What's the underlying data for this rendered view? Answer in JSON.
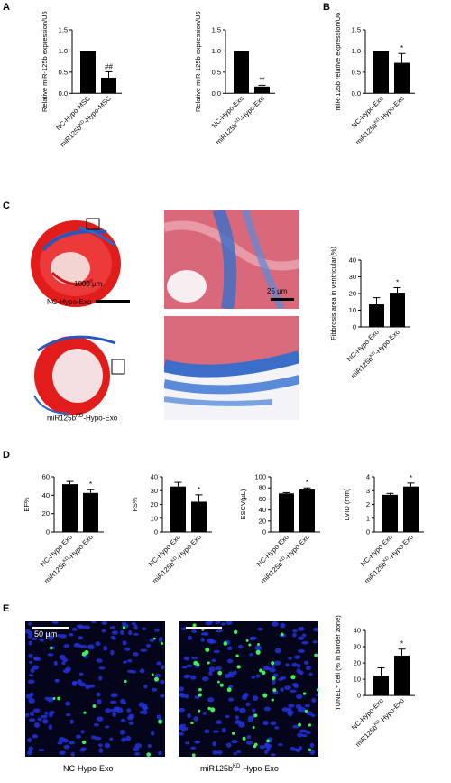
{
  "panels": {
    "A": "A",
    "B": "B",
    "C": "C",
    "D": "D",
    "E": "E"
  },
  "scale_bars": {
    "heart": "1000 µm",
    "zoom": "25 µm",
    "tunel": "50 µm"
  },
  "image_captions": {
    "c_top": "NC-Hypo-Exo",
    "c_bottom_prefix": "miR125b",
    "c_bottom_sup": "KD",
    "c_bottom_suffix": "-Hypo-Exo",
    "e_left": "NC-Hypo-Exo",
    "e_right_prefix": "miR125b",
    "e_right_sup": "KD",
    "e_right_suffix": "-Hypo-Exo"
  },
  "chart_data": [
    {
      "id": "A1",
      "type": "bar",
      "ylabel": "Relative miR-125b expression/U6",
      "ylim": [
        0,
        1.5
      ],
      "ticks": [
        0.0,
        0.5,
        1.0,
        1.5
      ],
      "categories": [
        {
          "p": "NC-Hypo-MSC",
          "s": "",
          "e": ""
        },
        {
          "p": "miR125b",
          "s": "KD",
          "e": "-Hypo-MSC"
        }
      ],
      "values": [
        1.0,
        0.37
      ],
      "errors": [
        0,
        0.14
      ],
      "signif": [
        "",
        "##"
      ]
    },
    {
      "id": "A2",
      "type": "bar",
      "ylabel": "Relative miR-125b expression/U6",
      "ylim": [
        0,
        1.5
      ],
      "ticks": [
        0.0,
        0.5,
        1.0,
        1.5
      ],
      "categories": [
        {
          "p": "NC-Hypo-Exo",
          "s": "",
          "e": ""
        },
        {
          "p": "miR125b",
          "s": "KD",
          "e": "-Hypo-Exo"
        }
      ],
      "values": [
        1.0,
        0.16
      ],
      "errors": [
        0,
        0.03
      ],
      "signif": [
        "",
        "**"
      ]
    },
    {
      "id": "B",
      "type": "bar",
      "ylabel": "miR-125b relative expression/U6",
      "ylim": [
        0,
        1.5
      ],
      "ticks": [
        0.0,
        0.5,
        1.0,
        1.5
      ],
      "categories": [
        {
          "p": "NC-Hypo-Exo",
          "s": "",
          "e": ""
        },
        {
          "p": "miR125b",
          "s": "KD",
          "e": "-Hypo-Exo"
        }
      ],
      "values": [
        1.0,
        0.72
      ],
      "errors": [
        0,
        0.22
      ],
      "signif": [
        "",
        "*"
      ]
    },
    {
      "id": "C",
      "type": "bar",
      "ylabel": "Fibbrosis area in ventricular(%)",
      "ylim": [
        0,
        40
      ],
      "ticks": [
        0,
        10,
        20,
        30,
        40
      ],
      "categories": [
        {
          "p": "NC-Hypo-Exo",
          "s": "",
          "e": ""
        },
        {
          "p": "miR125b",
          "s": "KD",
          "e": "-Hypo-Exo"
        }
      ],
      "values": [
        13.5,
        20.5
      ],
      "errors": [
        4,
        3
      ],
      "signif": [
        "",
        "*"
      ]
    },
    {
      "id": "D1",
      "type": "bar",
      "ylabel": "EF%",
      "ylim": [
        0,
        60
      ],
      "ticks": [
        0,
        20,
        40,
        60
      ],
      "categories": [
        {
          "p": "NC-Hypo-Exo",
          "s": "",
          "e": ""
        },
        {
          "p": "miR125b",
          "s": "KD",
          "e": "-Hypo-Exo"
        }
      ],
      "values": [
        52,
        42.5
      ],
      "errors": [
        3,
        3.5
      ],
      "signif": [
        "",
        "*"
      ]
    },
    {
      "id": "D2",
      "type": "bar",
      "ylabel": "FS%",
      "ylim": [
        0,
        40
      ],
      "ticks": [
        0,
        10,
        20,
        30,
        40
      ],
      "categories": [
        {
          "p": "NC-Hypo-Exo",
          "s": "",
          "e": ""
        },
        {
          "p": "miR125b",
          "s": "KD",
          "e": "-Hypo-Exo"
        }
      ],
      "values": [
        33,
        22
      ],
      "errors": [
        3,
        5
      ],
      "signif": [
        "",
        "*"
      ]
    },
    {
      "id": "D3",
      "type": "bar",
      "ylabel": "ESCV(µL)",
      "ylim": [
        0,
        100
      ],
      "ticks": [
        0,
        20,
        40,
        60,
        80,
        100
      ],
      "categories": [
        {
          "p": "NC-Hypo-Exo",
          "s": "",
          "e": ""
        },
        {
          "p": "miR125b",
          "s": "KD",
          "e": "-Hypo-Exo"
        }
      ],
      "values": [
        70,
        77
      ],
      "errors": [
        1.5,
        3
      ],
      "signif": [
        "",
        "*"
      ]
    },
    {
      "id": "D4",
      "type": "bar",
      "ylabel": "LVID (mm)",
      "ylim": [
        0,
        4
      ],
      "ticks": [
        0,
        1,
        2,
        3,
        4
      ],
      "categories": [
        {
          "p": "NC-Hypo-Exo",
          "s": "",
          "e": ""
        },
        {
          "p": "miR125b",
          "s": "KD",
          "e": "-Hypo-Exo"
        }
      ],
      "values": [
        2.7,
        3.3
      ],
      "errors": [
        0.1,
        0.25
      ],
      "signif": [
        "",
        "*"
      ]
    },
    {
      "id": "E",
      "type": "bar",
      "ylabel": "TUNEL⁺ cell (% in border zone)",
      "ylim": [
        0,
        40
      ],
      "ticks": [
        0,
        10,
        20,
        30,
        40
      ],
      "categories": [
        {
          "p": "NC-Hypo-Exo",
          "s": "",
          "e": ""
        },
        {
          "p": "miR125b",
          "s": "KD",
          "e": "-Hypo-Exo"
        }
      ],
      "values": [
        12,
        24.5
      ],
      "errors": [
        5,
        4
      ],
      "signif": [
        "",
        "*"
      ]
    }
  ]
}
